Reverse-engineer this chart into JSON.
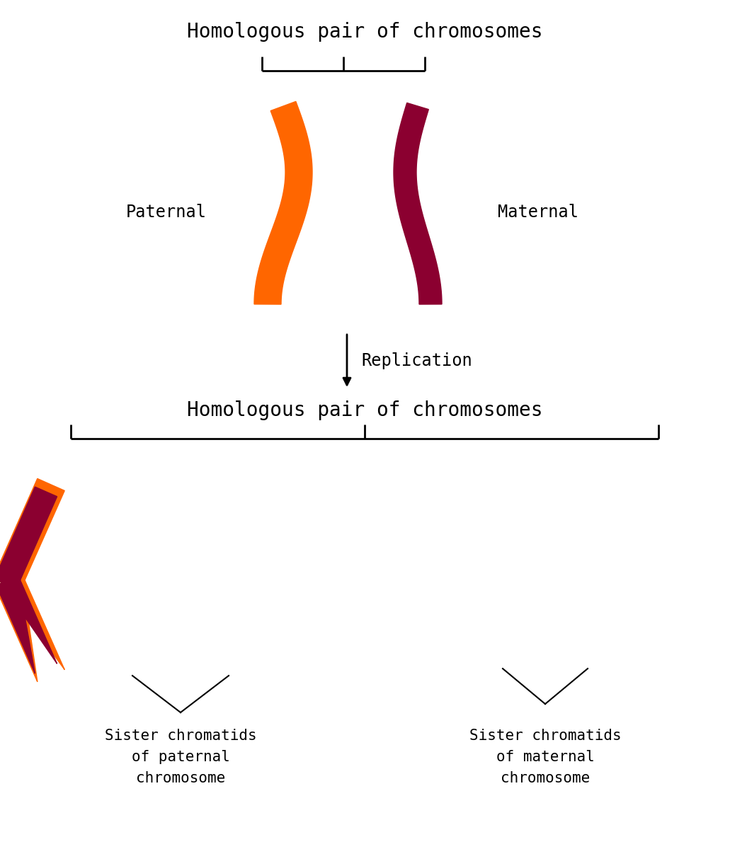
{
  "bg_color": "#ffffff",
  "orange_color": "#FF6600",
  "dark_red_color": "#8B0030",
  "text_color": "#000000",
  "title_top": "Homologous pair of chromosomes",
  "title_bottom": "Homologous pair of chromosomes",
  "label_paternal": "Paternal",
  "label_maternal": "Maternal",
  "label_replication": "Replication",
  "label_sister_paternal": "Sister chromatids\nof paternal\nchromosome",
  "label_sister_maternal": "Sister chromatids\nof maternal\nchromosome",
  "font_size_title": 20,
  "font_size_label": 17,
  "font_size_small": 15
}
